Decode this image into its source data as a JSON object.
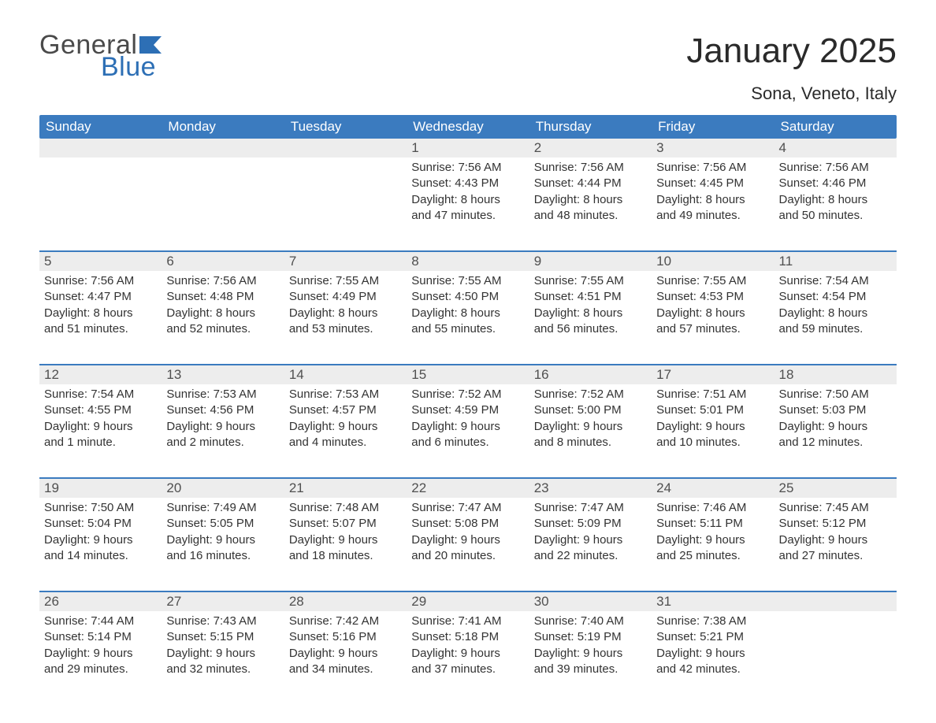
{
  "logo": {
    "word1": "General",
    "word2": "Blue",
    "color_gray": "#4a4a4a",
    "color_blue": "#2d6fb5"
  },
  "title": "January 2025",
  "location": "Sona, Veneto, Italy",
  "colors": {
    "header_bg": "#3b7bbf",
    "header_text": "#ffffff",
    "daynum_bg": "#ededed",
    "body_text": "#333333",
    "week_border": "#3b7bbf",
    "page_bg": "#ffffff"
  },
  "fonts": {
    "title_size": 44,
    "location_size": 22,
    "dayhead_size": 17,
    "body_size": 15
  },
  "day_headers": [
    "Sunday",
    "Monday",
    "Tuesday",
    "Wednesday",
    "Thursday",
    "Friday",
    "Saturday"
  ],
  "weeks": [
    [
      {
        "day": "",
        "sunrise": "",
        "sunset": "",
        "daylight1": "",
        "daylight2": ""
      },
      {
        "day": "",
        "sunrise": "",
        "sunset": "",
        "daylight1": "",
        "daylight2": ""
      },
      {
        "day": "",
        "sunrise": "",
        "sunset": "",
        "daylight1": "",
        "daylight2": ""
      },
      {
        "day": "1",
        "sunrise": "Sunrise: 7:56 AM",
        "sunset": "Sunset: 4:43 PM",
        "daylight1": "Daylight: 8 hours",
        "daylight2": "and 47 minutes."
      },
      {
        "day": "2",
        "sunrise": "Sunrise: 7:56 AM",
        "sunset": "Sunset: 4:44 PM",
        "daylight1": "Daylight: 8 hours",
        "daylight2": "and 48 minutes."
      },
      {
        "day": "3",
        "sunrise": "Sunrise: 7:56 AM",
        "sunset": "Sunset: 4:45 PM",
        "daylight1": "Daylight: 8 hours",
        "daylight2": "and 49 minutes."
      },
      {
        "day": "4",
        "sunrise": "Sunrise: 7:56 AM",
        "sunset": "Sunset: 4:46 PM",
        "daylight1": "Daylight: 8 hours",
        "daylight2": "and 50 minutes."
      }
    ],
    [
      {
        "day": "5",
        "sunrise": "Sunrise: 7:56 AM",
        "sunset": "Sunset: 4:47 PM",
        "daylight1": "Daylight: 8 hours",
        "daylight2": "and 51 minutes."
      },
      {
        "day": "6",
        "sunrise": "Sunrise: 7:56 AM",
        "sunset": "Sunset: 4:48 PM",
        "daylight1": "Daylight: 8 hours",
        "daylight2": "and 52 minutes."
      },
      {
        "day": "7",
        "sunrise": "Sunrise: 7:55 AM",
        "sunset": "Sunset: 4:49 PM",
        "daylight1": "Daylight: 8 hours",
        "daylight2": "and 53 minutes."
      },
      {
        "day": "8",
        "sunrise": "Sunrise: 7:55 AM",
        "sunset": "Sunset: 4:50 PM",
        "daylight1": "Daylight: 8 hours",
        "daylight2": "and 55 minutes."
      },
      {
        "day": "9",
        "sunrise": "Sunrise: 7:55 AM",
        "sunset": "Sunset: 4:51 PM",
        "daylight1": "Daylight: 8 hours",
        "daylight2": "and 56 minutes."
      },
      {
        "day": "10",
        "sunrise": "Sunrise: 7:55 AM",
        "sunset": "Sunset: 4:53 PM",
        "daylight1": "Daylight: 8 hours",
        "daylight2": "and 57 minutes."
      },
      {
        "day": "11",
        "sunrise": "Sunrise: 7:54 AM",
        "sunset": "Sunset: 4:54 PM",
        "daylight1": "Daylight: 8 hours",
        "daylight2": "and 59 minutes."
      }
    ],
    [
      {
        "day": "12",
        "sunrise": "Sunrise: 7:54 AM",
        "sunset": "Sunset: 4:55 PM",
        "daylight1": "Daylight: 9 hours",
        "daylight2": "and 1 minute."
      },
      {
        "day": "13",
        "sunrise": "Sunrise: 7:53 AM",
        "sunset": "Sunset: 4:56 PM",
        "daylight1": "Daylight: 9 hours",
        "daylight2": "and 2 minutes."
      },
      {
        "day": "14",
        "sunrise": "Sunrise: 7:53 AM",
        "sunset": "Sunset: 4:57 PM",
        "daylight1": "Daylight: 9 hours",
        "daylight2": "and 4 minutes."
      },
      {
        "day": "15",
        "sunrise": "Sunrise: 7:52 AM",
        "sunset": "Sunset: 4:59 PM",
        "daylight1": "Daylight: 9 hours",
        "daylight2": "and 6 minutes."
      },
      {
        "day": "16",
        "sunrise": "Sunrise: 7:52 AM",
        "sunset": "Sunset: 5:00 PM",
        "daylight1": "Daylight: 9 hours",
        "daylight2": "and 8 minutes."
      },
      {
        "day": "17",
        "sunrise": "Sunrise: 7:51 AM",
        "sunset": "Sunset: 5:01 PM",
        "daylight1": "Daylight: 9 hours",
        "daylight2": "and 10 minutes."
      },
      {
        "day": "18",
        "sunrise": "Sunrise: 7:50 AM",
        "sunset": "Sunset: 5:03 PM",
        "daylight1": "Daylight: 9 hours",
        "daylight2": "and 12 minutes."
      }
    ],
    [
      {
        "day": "19",
        "sunrise": "Sunrise: 7:50 AM",
        "sunset": "Sunset: 5:04 PM",
        "daylight1": "Daylight: 9 hours",
        "daylight2": "and 14 minutes."
      },
      {
        "day": "20",
        "sunrise": "Sunrise: 7:49 AM",
        "sunset": "Sunset: 5:05 PM",
        "daylight1": "Daylight: 9 hours",
        "daylight2": "and 16 minutes."
      },
      {
        "day": "21",
        "sunrise": "Sunrise: 7:48 AM",
        "sunset": "Sunset: 5:07 PM",
        "daylight1": "Daylight: 9 hours",
        "daylight2": "and 18 minutes."
      },
      {
        "day": "22",
        "sunrise": "Sunrise: 7:47 AM",
        "sunset": "Sunset: 5:08 PM",
        "daylight1": "Daylight: 9 hours",
        "daylight2": "and 20 minutes."
      },
      {
        "day": "23",
        "sunrise": "Sunrise: 7:47 AM",
        "sunset": "Sunset: 5:09 PM",
        "daylight1": "Daylight: 9 hours",
        "daylight2": "and 22 minutes."
      },
      {
        "day": "24",
        "sunrise": "Sunrise: 7:46 AM",
        "sunset": "Sunset: 5:11 PM",
        "daylight1": "Daylight: 9 hours",
        "daylight2": "and 25 minutes."
      },
      {
        "day": "25",
        "sunrise": "Sunrise: 7:45 AM",
        "sunset": "Sunset: 5:12 PM",
        "daylight1": "Daylight: 9 hours",
        "daylight2": "and 27 minutes."
      }
    ],
    [
      {
        "day": "26",
        "sunrise": "Sunrise: 7:44 AM",
        "sunset": "Sunset: 5:14 PM",
        "daylight1": "Daylight: 9 hours",
        "daylight2": "and 29 minutes."
      },
      {
        "day": "27",
        "sunrise": "Sunrise: 7:43 AM",
        "sunset": "Sunset: 5:15 PM",
        "daylight1": "Daylight: 9 hours",
        "daylight2": "and 32 minutes."
      },
      {
        "day": "28",
        "sunrise": "Sunrise: 7:42 AM",
        "sunset": "Sunset: 5:16 PM",
        "daylight1": "Daylight: 9 hours",
        "daylight2": "and 34 minutes."
      },
      {
        "day": "29",
        "sunrise": "Sunrise: 7:41 AM",
        "sunset": "Sunset: 5:18 PM",
        "daylight1": "Daylight: 9 hours",
        "daylight2": "and 37 minutes."
      },
      {
        "day": "30",
        "sunrise": "Sunrise: 7:40 AM",
        "sunset": "Sunset: 5:19 PM",
        "daylight1": "Daylight: 9 hours",
        "daylight2": "and 39 minutes."
      },
      {
        "day": "31",
        "sunrise": "Sunrise: 7:38 AM",
        "sunset": "Sunset: 5:21 PM",
        "daylight1": "Daylight: 9 hours",
        "daylight2": "and 42 minutes."
      },
      {
        "day": "",
        "sunrise": "",
        "sunset": "",
        "daylight1": "",
        "daylight2": ""
      }
    ]
  ]
}
